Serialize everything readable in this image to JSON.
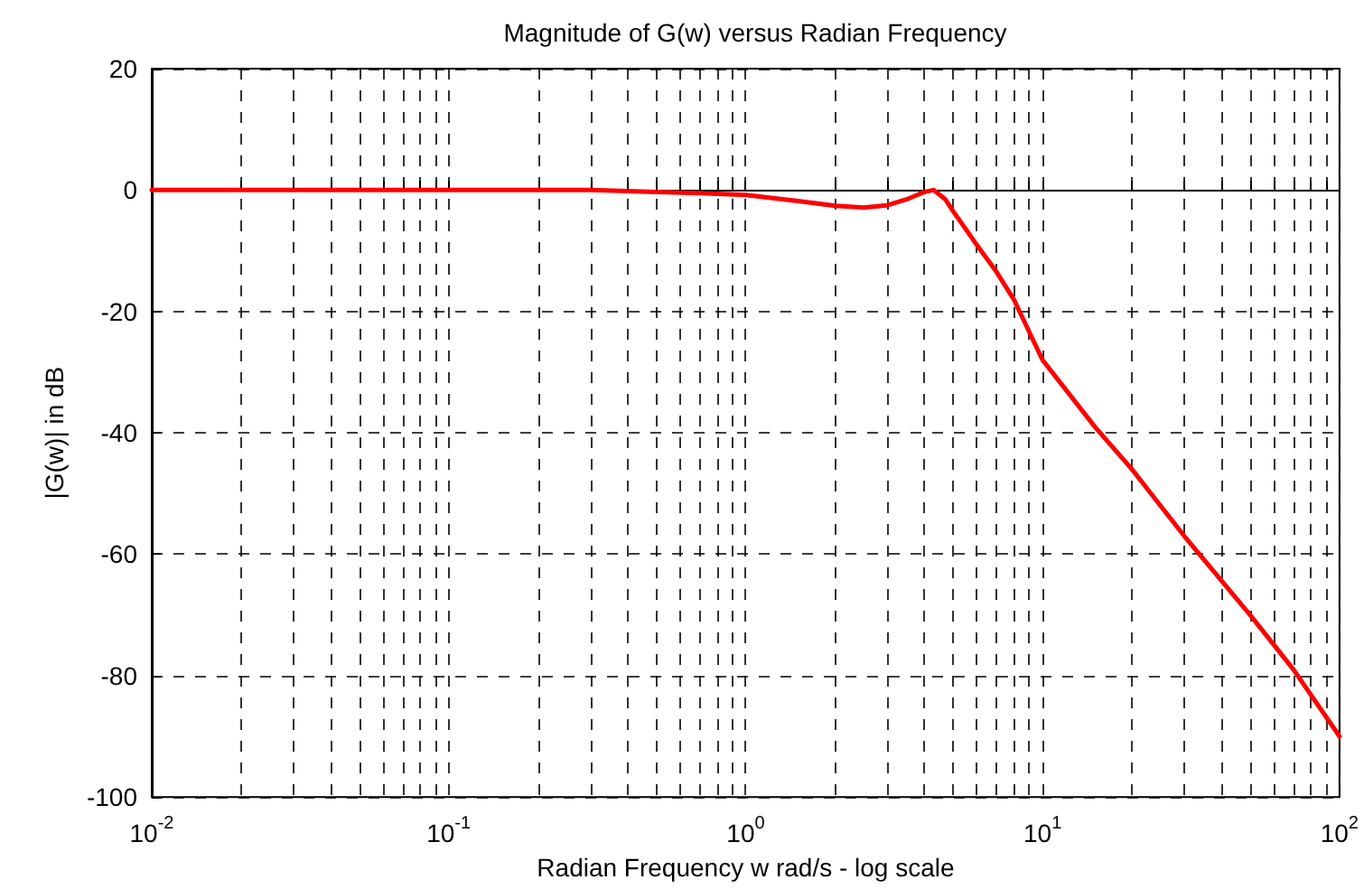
{
  "chart_data": {
    "type": "line",
    "title": "Magnitude of G(w) versus Radian Frequency",
    "xlabel": "Radian Frequency w rad/s - log scale",
    "ylabel": "|G(w)| in dB",
    "log": "x",
    "grid": true,
    "marker": "none",
    "line_style": "solid",
    "x": [
      0.01,
      0.02,
      0.05,
      0.1,
      0.2,
      0.3,
      0.5,
      0.7,
      1,
      1.5,
      2,
      2.5,
      3,
      3.5,
      4,
      4.3,
      4.7,
      5,
      6,
      7,
      8,
      10,
      15,
      20,
      30,
      50,
      70,
      100
    ],
    "series": [
      {
        "color": "#ff0000",
        "values": [
          0,
          0,
          0,
          0,
          0,
          0,
          -0.3,
          -0.5,
          -0.8,
          -1.8,
          -2.6,
          -2.9,
          -2.5,
          -1.5,
          -0.3,
          0,
          -1.5,
          -3.5,
          -9,
          -13.5,
          -18,
          -28,
          -39,
          -46,
          -57,
          -70,
          -79,
          -90
        ]
      }
    ],
    "xlim": [
      0.01,
      100
    ],
    "xticks": [
      {
        "value": 0.01,
        "label": "10$^{-2}$"
      },
      {
        "value": 0.1,
        "label": "10$^{-1}$"
      },
      {
        "value": 1,
        "label": "10$^{0}$"
      },
      {
        "value": 10,
        "label": "10$^{1}$"
      },
      {
        "value": 100,
        "label": "10$^{2}$"
      }
    ],
    "ylim": [
      -100,
      20
    ],
    "yticks": [
      -100,
      -80,
      -60,
      -40,
      -20,
      0,
      20
    ]
  }
}
